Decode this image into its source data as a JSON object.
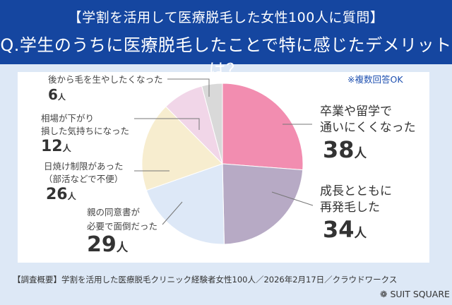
{
  "header": {
    "line1": "【学割を活用して医療脱毛した女性100人に質問】",
    "line2": "Q.学生のうちに医療脱毛したことで特に感じたデメリットは？"
  },
  "note": "※複数回答OK",
  "chart_data": {
    "type": "pie",
    "title": "Q.学生のうちに医療脱毛したことで特に感じたデメリットは？",
    "unit": "人",
    "start": "12 o'clock, clockwise",
    "slices": [
      {
        "label_lines": [
          "卒業や留学で",
          "通いにくくなった"
        ],
        "value": 38,
        "value_label": "38",
        "color": "#f28db0"
      },
      {
        "label_lines": [
          "成長とともに",
          "再発毛した"
        ],
        "value": 34,
        "value_label": "34",
        "color": "#b7aac5"
      },
      {
        "label_lines": [
          "親の同意書が",
          "必要で面倒だった"
        ],
        "value": 29,
        "value_label": "29",
        "color": "#dde8f7"
      },
      {
        "label_lines": [
          "日焼け制限があった",
          "（部活などで不便）"
        ],
        "value": 26,
        "value_label": "26",
        "color": "#f7edcf"
      },
      {
        "label_lines": [
          "相場が下がり",
          "損した気持ちになった"
        ],
        "value": 12,
        "value_label": "12",
        "color": "#f1d6e8"
      },
      {
        "label_lines": [
          "後から毛を生やしたくなった"
        ],
        "value": 6,
        "value_label": "6",
        "color": "#d9d9d9"
      }
    ]
  },
  "footer": {
    "survey": "【調査概要】学割を活用した医療脱毛クリニック経験者女性100人／2026年2月17日／クラウドワークス",
    "brand": "SUIT SQUARE"
  }
}
